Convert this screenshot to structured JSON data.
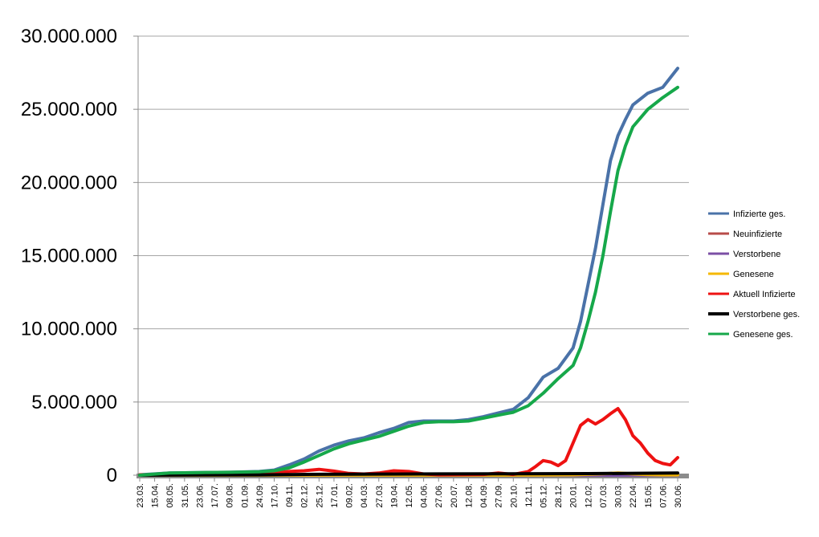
{
  "chart_data": {
    "type": "line",
    "title": "",
    "xlabel": "",
    "ylabel": "",
    "ylim": [
      0,
      30000000
    ],
    "yticks": [
      0,
      5000000,
      10000000,
      15000000,
      20000000,
      25000000,
      30000000
    ],
    "ytick_labels": [
      "0",
      "5.000.000",
      "10.000.000",
      "15.000.000",
      "20.000.000",
      "25.000.000",
      "30.000.000"
    ],
    "grid": true,
    "legend_position": "right",
    "x_labels": [
      "23.03.",
      "15.04.",
      "08.05.",
      "31.05.",
      "23.06.",
      "17.07.",
      "09.08.",
      "01.09.",
      "24.09.",
      "17.10.",
      "09.11.",
      "02.12.",
      "25.12.",
      "17.01.",
      "09.02.",
      "04.03.",
      "27.03.",
      "19.04.",
      "12.05.",
      "04.06.",
      "27.06.",
      "20.07.",
      "12.08.",
      "04.09.",
      "27.09.",
      "20.10.",
      "12.11.",
      "05.12.",
      "28.12.",
      "20.01.",
      "12.02.",
      "07.03.",
      "30.03.",
      "22.04.",
      "15.05.",
      "07.06.",
      "30.06."
    ],
    "series": [
      {
        "name": "Infizierte ges.",
        "color": "#4a72a8",
        "points": [
          [
            0,
            30000
          ],
          [
            2,
            150000
          ],
          [
            4,
            180000
          ],
          [
            6,
            200000
          ],
          [
            8,
            250000
          ],
          [
            9,
            350000
          ],
          [
            10,
            700000
          ],
          [
            11,
            1100000
          ],
          [
            12,
            1650000
          ],
          [
            13,
            2050000
          ],
          [
            14,
            2350000
          ],
          [
            15,
            2550000
          ],
          [
            16,
            2900000
          ],
          [
            17,
            3200000
          ],
          [
            18,
            3600000
          ],
          [
            19,
            3700000
          ],
          [
            20,
            3700000
          ],
          [
            21,
            3700000
          ],
          [
            22,
            3800000
          ],
          [
            23,
            4000000
          ],
          [
            24,
            4250000
          ],
          [
            25,
            4500000
          ],
          [
            26,
            5300000
          ],
          [
            27,
            6700000
          ],
          [
            28,
            7300000
          ],
          [
            29,
            8700000
          ],
          [
            29.5,
            10500000
          ],
          [
            30,
            13000000
          ],
          [
            30.5,
            15500000
          ],
          [
            31,
            18500000
          ],
          [
            31.5,
            21500000
          ],
          [
            32,
            23200000
          ],
          [
            32.5,
            24300000
          ],
          [
            33,
            25300000
          ],
          [
            34,
            26100000
          ],
          [
            35,
            26500000
          ],
          [
            36,
            27800000
          ]
        ]
      },
      {
        "name": "Neuinfizierte",
        "color": "#b84c4a",
        "points": [
          [
            0,
            0
          ],
          [
            10,
            5000
          ],
          [
            20,
            5000
          ],
          [
            27,
            10000
          ],
          [
            29,
            40000
          ],
          [
            30,
            70000
          ],
          [
            31,
            90000
          ],
          [
            32,
            120000
          ],
          [
            33,
            80000
          ],
          [
            34,
            30000
          ],
          [
            35,
            20000
          ],
          [
            36,
            20000
          ]
        ]
      },
      {
        "name": "Verstorbene",
        "color": "#7b4fa5",
        "points": [
          [
            0,
            0
          ],
          [
            36,
            0
          ]
        ]
      },
      {
        "name": "Genesene",
        "color": "#f5b800",
        "points": [
          [
            0,
            0
          ],
          [
            10,
            5000
          ],
          [
            20,
            5000
          ],
          [
            27,
            10000
          ],
          [
            29,
            30000
          ],
          [
            30,
            60000
          ],
          [
            31,
            100000
          ],
          [
            32,
            150000
          ],
          [
            33,
            90000
          ],
          [
            34,
            40000
          ],
          [
            35,
            20000
          ],
          [
            36,
            20000
          ]
        ]
      },
      {
        "name": "Aktuell Infizierte",
        "color": "#ee1111",
        "points": [
          [
            0,
            30000
          ],
          [
            4,
            50000
          ],
          [
            8,
            100000
          ],
          [
            9,
            150000
          ],
          [
            10,
            250000
          ],
          [
            11,
            300000
          ],
          [
            12,
            400000
          ],
          [
            13,
            280000
          ],
          [
            14,
            120000
          ],
          [
            15,
            80000
          ],
          [
            16,
            150000
          ],
          [
            17,
            300000
          ],
          [
            18,
            250000
          ],
          [
            19,
            80000
          ],
          [
            20,
            30000
          ],
          [
            23,
            50000
          ],
          [
            24,
            150000
          ],
          [
            25,
            50000
          ],
          [
            26,
            250000
          ],
          [
            26.5,
            600000
          ],
          [
            27,
            1000000
          ],
          [
            27.5,
            900000
          ],
          [
            28,
            650000
          ],
          [
            28.5,
            1000000
          ],
          [
            29,
            2200000
          ],
          [
            29.5,
            3400000
          ],
          [
            30,
            3800000
          ],
          [
            30.5,
            3500000
          ],
          [
            31,
            3800000
          ],
          [
            31.5,
            4200000
          ],
          [
            32,
            4550000
          ],
          [
            32.5,
            3800000
          ],
          [
            33,
            2700000
          ],
          [
            33.5,
            2200000
          ],
          [
            34,
            1500000
          ],
          [
            34.5,
            1000000
          ],
          [
            35,
            800000
          ],
          [
            35.5,
            700000
          ],
          [
            36,
            1200000
          ]
        ]
      },
      {
        "name": "Verstorbene ges.",
        "color": "#000000",
        "points": [
          [
            0,
            0
          ],
          [
            8,
            20000
          ],
          [
            12,
            60000
          ],
          [
            20,
            90000
          ],
          [
            30,
            110000
          ],
          [
            36,
            150000
          ]
        ]
      },
      {
        "name": "Genesene ges.",
        "color": "#16a84a",
        "points": [
          [
            0,
            0
          ],
          [
            2,
            150000
          ],
          [
            4,
            180000
          ],
          [
            6,
            200000
          ],
          [
            8,
            230000
          ],
          [
            9,
            300000
          ],
          [
            10,
            500000
          ],
          [
            11,
            900000
          ],
          [
            12,
            1350000
          ],
          [
            13,
            1800000
          ],
          [
            14,
            2150000
          ],
          [
            15,
            2400000
          ],
          [
            16,
            2650000
          ],
          [
            17,
            3000000
          ],
          [
            18,
            3350000
          ],
          [
            19,
            3600000
          ],
          [
            20,
            3650000
          ],
          [
            21,
            3650000
          ],
          [
            22,
            3700000
          ],
          [
            23,
            3900000
          ],
          [
            24,
            4100000
          ],
          [
            25,
            4300000
          ],
          [
            26,
            4750000
          ],
          [
            27,
            5600000
          ],
          [
            28,
            6600000
          ],
          [
            29,
            7500000
          ],
          [
            29.5,
            8700000
          ],
          [
            30,
            10500000
          ],
          [
            30.5,
            12500000
          ],
          [
            31,
            15000000
          ],
          [
            31.5,
            18000000
          ],
          [
            32,
            20800000
          ],
          [
            32.5,
            22500000
          ],
          [
            33,
            23800000
          ],
          [
            34,
            25000000
          ],
          [
            35,
            25800000
          ],
          [
            36,
            26500000
          ]
        ]
      }
    ]
  }
}
